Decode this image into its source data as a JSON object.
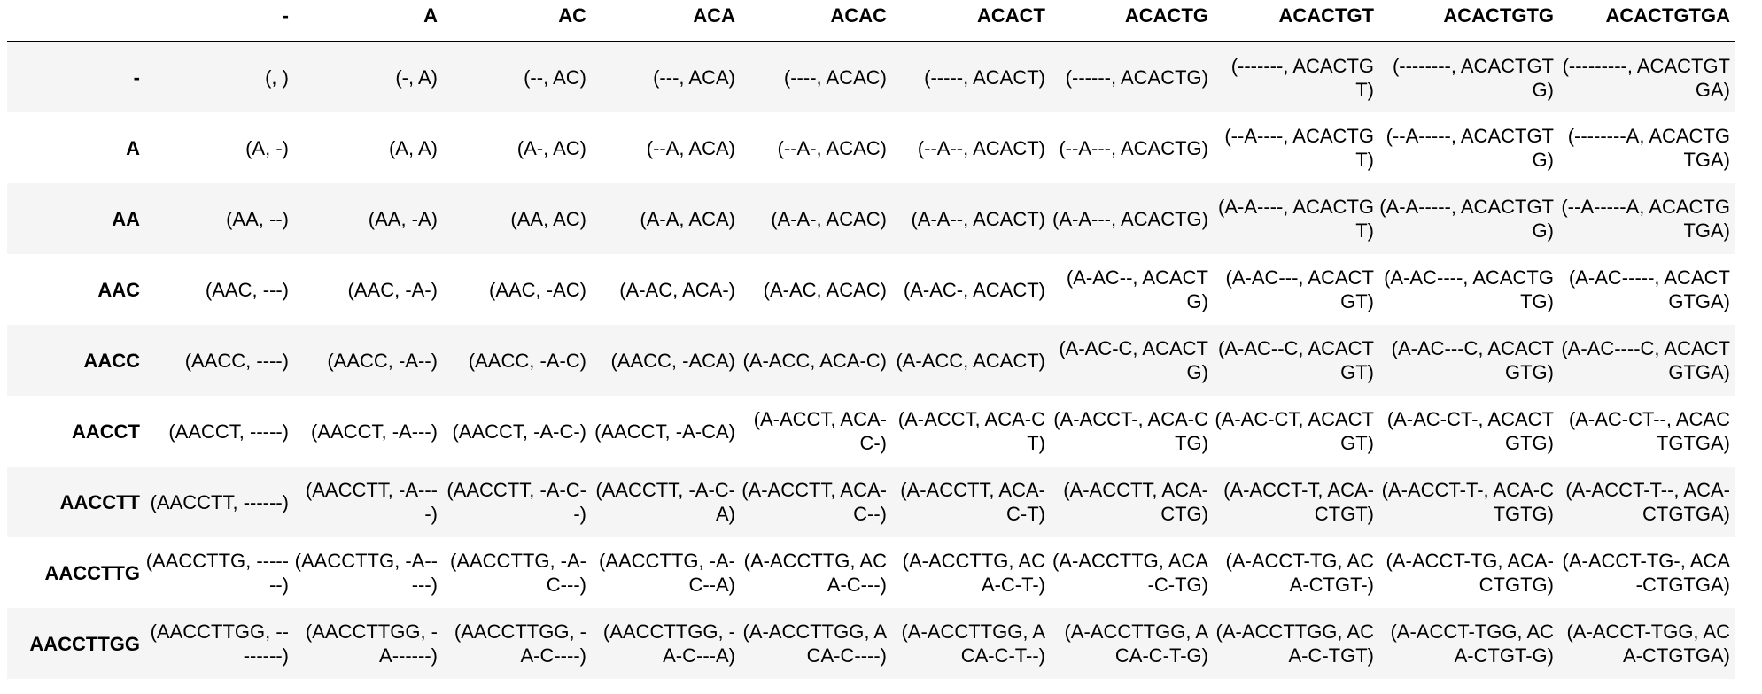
{
  "table": {
    "corner": "",
    "columns": [
      "-",
      "A",
      "AC",
      "ACA",
      "ACAC",
      "ACACT",
      "ACACTG",
      "ACACTGT",
      "ACACTGTG",
      "ACACTGTGA"
    ],
    "rows": [
      {
        "label": "-",
        "cells": [
          "(, )",
          "(-, A)",
          "(--, AC)",
          "(---, ACA)",
          "(----, ACAC)",
          "(-----, ACACT)",
          "(------, ACACTG)",
          "(-------, ACACTGT)",
          "(--------, ACACTGTG)",
          "(---------, ACACTGTGA)"
        ]
      },
      {
        "label": "A",
        "cells": [
          "(A, -)",
          "(A, A)",
          "(A-, AC)",
          "(--A, ACA)",
          "(--A-, ACAC)",
          "(--A--, ACACT)",
          "(--A---, ACACTG)",
          "(--A----, ACACTGT)",
          "(--A-----, ACACTGTG)",
          "(--------A, ACACTGTGA)"
        ]
      },
      {
        "label": "AA",
        "cells": [
          "(AA, --)",
          "(AA, -A)",
          "(AA, AC)",
          "(A-A, ACA)",
          "(A-A-, ACAC)",
          "(A-A--, ACACT)",
          "(A-A---, ACACTG)",
          "(A-A----, ACACTGT)",
          "(A-A-----, ACACTGTG)",
          "(--A-----A, ACACTGTGA)"
        ]
      },
      {
        "label": "AAC",
        "cells": [
          "(AAC, ---)",
          "(AAC, -A-)",
          "(AAC, -AC)",
          "(A-AC, ACA-)",
          "(A-AC, ACAC)",
          "(A-AC-, ACACT)",
          "(A-AC--, ACACTG)",
          "(A-AC---, ACACTGT)",
          "(A-AC----, ACACTGTG)",
          "(A-AC-----, ACACTGTGA)"
        ]
      },
      {
        "label": "AACC",
        "cells": [
          "(AACC, ----)",
          "(AACC, -A--)",
          "(AACC, -A-C)",
          "(AACC, -ACA)",
          "(A-ACC, ACA-C)",
          "(A-ACC, ACACT)",
          "(A-AC-C, ACACTG)",
          "(A-AC--C, ACACTGT)",
          "(A-AC---C, ACACTGTG)",
          "(A-AC----C, ACACTGTGA)"
        ]
      },
      {
        "label": "AACCT",
        "cells": [
          "(AACCT, -----)",
          "(AACCT, -A---)",
          "(AACCT, -A-C-)",
          "(AACCT, -A-CA)",
          "(A-ACCT, ACA-C-)",
          "(A-ACCT, ACA-CT)",
          "(A-ACCT-, ACA-CTG)",
          "(A-AC-CT, ACACTGT)",
          "(A-AC-CT-, ACACTGTG)",
          "(A-AC-CT--, ACACTGTGA)"
        ]
      },
      {
        "label": "AACCTT",
        "cells": [
          "(AACCTT, ------)",
          "(AACCTT, -A----)",
          "(AACCTT, -A-C--)",
          "(AACCTT, -A-C-A)",
          "(A-ACCTT, ACA-C--)",
          "(A-ACCTT, ACA-C-T)",
          "(A-ACCTT, ACA-CTG)",
          "(A-ACCT-T, ACA-CTGT)",
          "(A-ACCT-T-, ACA-CTGTG)",
          "(A-ACCT-T--, ACA-CTGTGA)"
        ]
      },
      {
        "label": "AACCTTG",
        "cells": [
          "(AACCTTG, -------)",
          "(AACCTTG, -A-----)",
          "(AACCTTG, -A-C---)",
          "(AACCTTG, -A-C--A)",
          "(A-ACCTTG, ACA-C---)",
          "(A-ACCTTG, ACA-C-T-)",
          "(A-ACCTTG, ACA-C-TG)",
          "(A-ACCT-TG, ACA-CTGT-)",
          "(A-ACCT-TG, ACA-CTGTG)",
          "(A-ACCT-TG-, ACA-CTGTGA)"
        ]
      },
      {
        "label": "AACCTTGG",
        "cells": [
          "(AACCTTGG, --------)",
          "(AACCTTGG, -A------)",
          "(AACCTTGG, -A-C----)",
          "(AACCTTGG, -A-C---A)",
          "(A-ACCTTGG, ACA-C----)",
          "(A-ACCTTGG, ACA-C-T--)",
          "(A-ACCTTGG, ACA-C-T-G)",
          "(A-ACCTTGG, ACA-C-TGT)",
          "(A-ACCT-TGG, ACA-CTGT-G)",
          "(A-ACCT-TGG, ACA-CTGTGA)"
        ]
      }
    ]
  }
}
